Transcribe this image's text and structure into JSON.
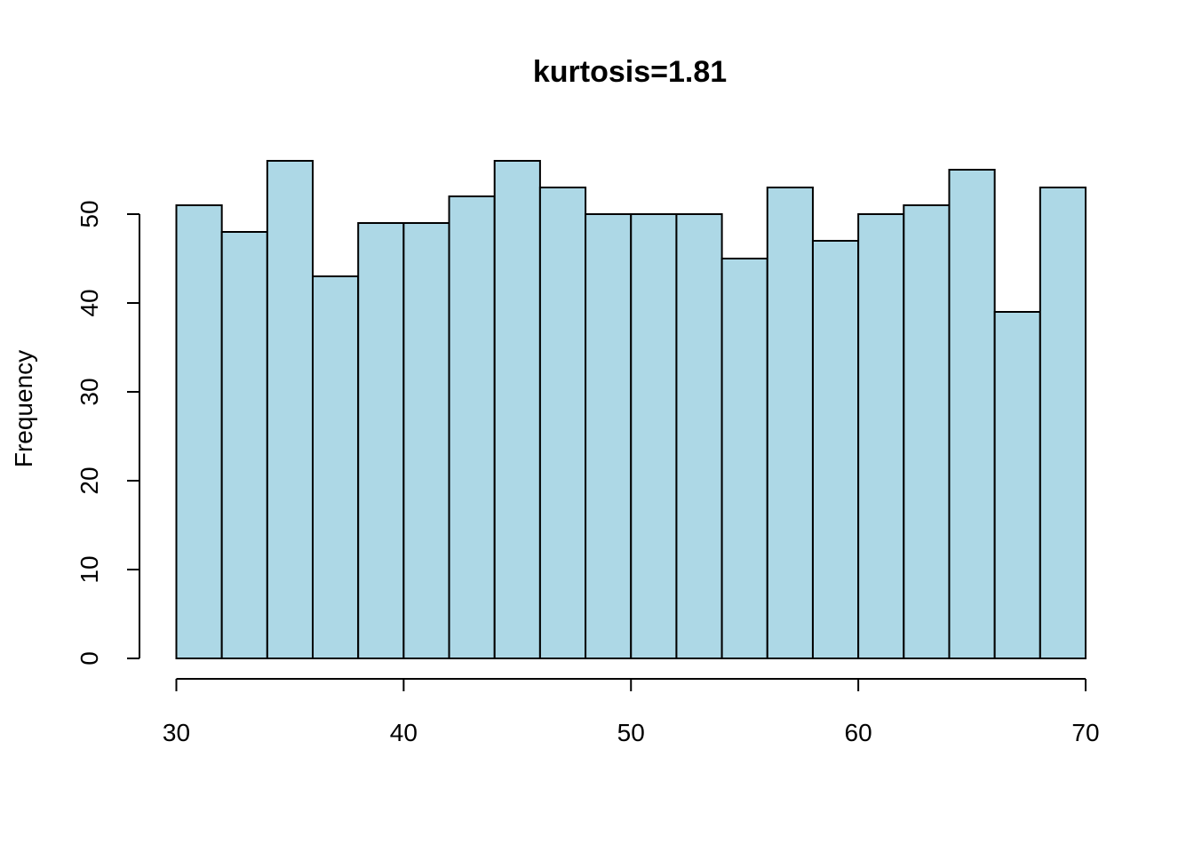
{
  "chart_data": {
    "type": "bar",
    "title": "kurtosis=1.81",
    "xlabel": "",
    "ylabel": "Frequency",
    "bin_width": 2,
    "bins": [
      [
        30,
        32
      ],
      [
        32,
        34
      ],
      [
        34,
        36
      ],
      [
        36,
        38
      ],
      [
        38,
        40
      ],
      [
        40,
        42
      ],
      [
        42,
        44
      ],
      [
        44,
        46
      ],
      [
        46,
        48
      ],
      [
        48,
        50
      ],
      [
        50,
        52
      ],
      [
        52,
        54
      ],
      [
        54,
        56
      ],
      [
        56,
        58
      ],
      [
        58,
        60
      ],
      [
        60,
        62
      ],
      [
        62,
        64
      ],
      [
        64,
        66
      ],
      [
        66,
        68
      ],
      [
        68,
        70
      ]
    ],
    "values": [
      51,
      48,
      56,
      43,
      49,
      49,
      52,
      56,
      53,
      50,
      50,
      50,
      45,
      53,
      47,
      50,
      51,
      55,
      39,
      53
    ],
    "xlim": [
      30,
      70
    ],
    "ylim": [
      0,
      56
    ],
    "x_ticks": [
      30,
      40,
      50,
      60,
      70
    ],
    "y_ticks": [
      0,
      10,
      20,
      30,
      40,
      50
    ],
    "grid": false,
    "bar_color": "#add8e6",
    "edge_color": "#000000"
  }
}
